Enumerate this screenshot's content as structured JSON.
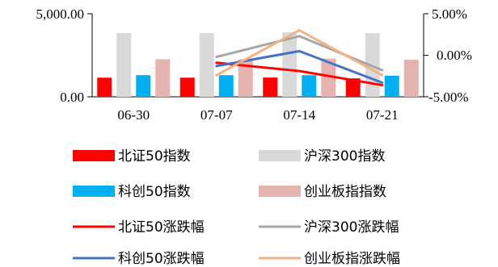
{
  "chart_data": {
    "type": "bar",
    "title": "",
    "xlabel": "",
    "ylabel": "",
    "categories": [
      "06-30",
      "07-07",
      "07-14",
      "07-21"
    ],
    "left_axis": {
      "ylim": [
        0,
        5000
      ],
      "tick_labels": [
        "0.00",
        "5,000.00"
      ],
      "tick_values": [
        0,
        5000
      ]
    },
    "right_axis": {
      "ylim": [
        -5,
        5
      ],
      "unit": "%",
      "tick_labels": [
        "-5.00%",
        "0.00%",
        "5.00%"
      ],
      "tick_values": [
        -5,
        0,
        5
      ]
    },
    "grid": false,
    "legend_position": "bottom",
    "bar_series": [
      {
        "name": "北证50指数",
        "color": "#ff0000",
        "values": [
          1150,
          1150,
          1160,
          1110
        ]
      },
      {
        "name": "沪深300指数",
        "color": "#d9d9d9",
        "values": [
          3840,
          3840,
          3890,
          3830
        ]
      },
      {
        "name": "科创50指数",
        "color": "#00b0f0",
        "values": [
          1300,
          1300,
          1300,
          1270
        ]
      },
      {
        "name": "创业板指指数",
        "color": "#e6b4b0",
        "values": [
          2260,
          2260,
          2300,
          2230
        ]
      }
    ],
    "line_series": [
      {
        "name": "北证50涨跌幅",
        "color": "#ff0000",
        "values": [
          null,
          -0.9,
          -1.9,
          -3.6
        ]
      },
      {
        "name": "沪深300涨跌幅",
        "color": "#a6a6a6",
        "values": [
          null,
          -0.2,
          2.3,
          -1.8
        ]
      },
      {
        "name": "科创50涨跌幅",
        "color": "#4472c4",
        "values": [
          null,
          -1.3,
          0.5,
          -3.3
        ]
      },
      {
        "name": "创业板指涨跌幅",
        "color": "#f4b183",
        "values": [
          null,
          -2.4,
          3.0,
          -2.4
        ]
      }
    ]
  }
}
